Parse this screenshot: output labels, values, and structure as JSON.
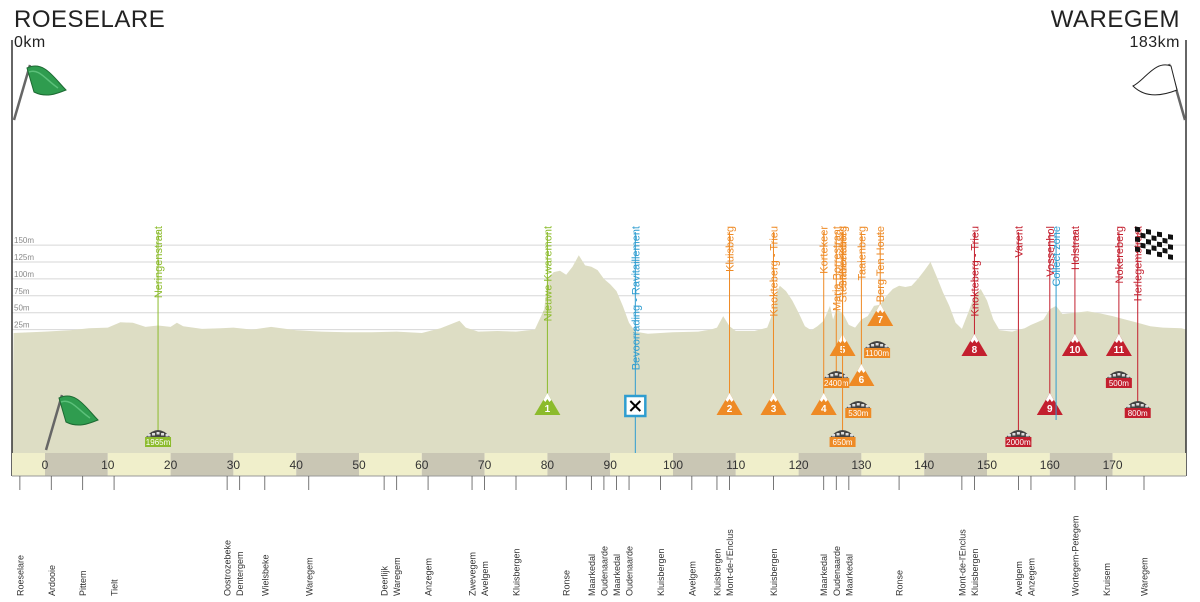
{
  "header": {
    "start_city": "ROESELARE",
    "start_km": "0km",
    "finish_city": "WAREGEM",
    "finish_km": "183km"
  },
  "colors": {
    "terrain": "#ddddc4",
    "green": "#8cbb2c",
    "orange": "#ee8a25",
    "red": "#c31f2e",
    "blue": "#2f9dd0",
    "cobble_line": "#8cbb2c",
    "axis_dark": "#c9c6b4",
    "axis_light": "#f0efcb",
    "grid": "#d7d7d7",
    "flag_green": "#2f9c4f"
  },
  "chart_data": {
    "type": "area",
    "title": "",
    "xlabel": "",
    "ylabel": "",
    "xlim": [
      0,
      183
    ],
    "ylim": [
      0,
      150
    ],
    "x_ticks": [
      0,
      10,
      20,
      30,
      40,
      50,
      60,
      70,
      80,
      90,
      100,
      110,
      120,
      130,
      140,
      150,
      160,
      170
    ],
    "y_ticks": [
      {
        "value": 25,
        "label": "25m"
      },
      {
        "value": 50,
        "label": "50m"
      },
      {
        "value": 75,
        "label": "75m"
      },
      {
        "value": 100,
        "label": "100m"
      },
      {
        "value": 125,
        "label": "125m"
      },
      {
        "value": 150,
        "label": "150m"
      }
    ],
    "elevation": [
      [
        -5,
        20
      ],
      [
        0,
        22
      ],
      [
        4,
        24
      ],
      [
        7,
        27
      ],
      [
        10,
        28
      ],
      [
        12,
        36
      ],
      [
        14,
        35
      ],
      [
        16,
        29
      ],
      [
        18,
        31
      ],
      [
        20,
        29
      ],
      [
        21,
        35
      ],
      [
        22,
        30
      ],
      [
        25,
        26
      ],
      [
        28,
        27
      ],
      [
        30,
        28
      ],
      [
        33,
        25
      ],
      [
        36,
        29
      ],
      [
        40,
        24
      ],
      [
        44,
        22
      ],
      [
        48,
        21
      ],
      [
        52,
        21
      ],
      [
        56,
        22
      ],
      [
        60,
        20
      ],
      [
        63,
        27
      ],
      [
        66,
        38
      ],
      [
        67,
        28
      ],
      [
        69,
        22
      ],
      [
        72,
        23
      ],
      [
        75,
        22
      ],
      [
        78,
        25
      ],
      [
        79.5,
        55
      ],
      [
        80,
        100
      ],
      [
        81,
        110
      ],
      [
        82,
        112
      ],
      [
        83,
        106
      ],
      [
        84,
        118
      ],
      [
        85,
        135
      ],
      [
        86,
        120
      ],
      [
        87,
        118
      ],
      [
        88,
        113
      ],
      [
        89,
        100
      ],
      [
        90,
        92
      ],
      [
        91,
        82
      ],
      [
        92,
        60
      ],
      [
        93,
        35
      ],
      [
        94,
        22
      ],
      [
        96,
        19
      ],
      [
        100,
        21
      ],
      [
        104,
        22
      ],
      [
        106,
        25
      ],
      [
        107,
        28
      ],
      [
        108,
        45
      ],
      [
        109,
        30
      ],
      [
        110,
        23
      ],
      [
        113,
        23
      ],
      [
        115,
        28
      ],
      [
        116,
        52
      ],
      [
        116.5,
        80
      ],
      [
        117,
        90
      ],
      [
        118,
        82
      ],
      [
        119,
        68
      ],
      [
        120,
        50
      ],
      [
        121,
        30
      ],
      [
        122,
        24
      ],
      [
        123,
        30
      ],
      [
        124,
        38
      ],
      [
        125,
        60
      ],
      [
        125.5,
        40
      ],
      [
        126,
        55
      ],
      [
        127,
        50
      ],
      [
        128,
        32
      ],
      [
        129,
        28
      ],
      [
        130,
        40
      ],
      [
        131,
        45
      ],
      [
        132,
        60
      ],
      [
        133,
        62
      ],
      [
        134,
        75
      ],
      [
        135,
        85
      ],
      [
        136,
        90
      ],
      [
        137,
        88
      ],
      [
        138,
        90
      ],
      [
        139,
        100
      ],
      [
        140,
        112
      ],
      [
        141,
        125
      ],
      [
        142,
        103
      ],
      [
        143,
        80
      ],
      [
        144,
        60
      ],
      [
        145,
        35
      ],
      [
        146,
        26
      ],
      [
        147,
        50
      ],
      [
        148,
        75
      ],
      [
        149,
        85
      ],
      [
        150,
        68
      ],
      [
        151,
        40
      ],
      [
        152,
        24
      ],
      [
        154,
        22
      ],
      [
        156,
        27
      ],
      [
        157,
        32
      ],
      [
        158,
        36
      ],
      [
        159,
        40
      ],
      [
        160,
        55
      ],
      [
        161,
        60
      ],
      [
        162,
        48
      ],
      [
        164,
        50
      ],
      [
        166,
        52
      ],
      [
        168,
        49
      ],
      [
        170,
        45
      ],
      [
        172,
        40
      ],
      [
        174,
        35
      ],
      [
        176,
        30
      ],
      [
        178,
        28
      ],
      [
        181,
        27
      ],
      [
        183,
        25
      ],
      [
        188,
        24
      ]
    ],
    "climbs": [
      {
        "num": "1",
        "name": "Nieuwe Kwaremont",
        "km": 80,
        "color": "green",
        "level": "low"
      },
      {
        "num": "2",
        "name": "Kluisberg",
        "km": 109,
        "color": "orange",
        "level": "low"
      },
      {
        "num": "3",
        "name": "Knokteberg - Trieu",
        "km": 116,
        "color": "orange",
        "level": "low"
      },
      {
        "num": "4",
        "name": "Kortekeer",
        "km": 124,
        "color": "orange",
        "level": "low"
      },
      {
        "num": "5",
        "name": "Steenbeekdries",
        "km": 127,
        "color": "orange",
        "level": "high"
      },
      {
        "num": "6",
        "name": "Taaienberg",
        "km": 130,
        "color": "orange",
        "level": "mid"
      },
      {
        "num": "7",
        "name": "Berg Ten Houte",
        "km": 133,
        "color": "orange",
        "level": "top"
      },
      {
        "num": "8",
        "name": "Knokteberg - Trieu",
        "km": 148,
        "color": "red",
        "level": "high"
      },
      {
        "num": "9",
        "name": "Vossenhol",
        "km": 160,
        "color": "red",
        "level": "low"
      },
      {
        "num": "10",
        "name": "Holstraat",
        "km": 164,
        "color": "red",
        "level": "high"
      },
      {
        "num": "11",
        "name": "Nokereberg",
        "km": 171,
        "color": "red",
        "level": "high"
      }
    ],
    "cobbles": [
      {
        "name": "Neringenstraat",
        "label": "1965m",
        "km": 18,
        "color": "green",
        "level": "bottom"
      },
      {
        "name": "Maria Borrestraat",
        "label": "2400m",
        "km": 126,
        "color": "orange",
        "level": "mid"
      },
      {
        "name": "Stationsberg",
        "label": "650m",
        "km": 127,
        "color": "orange",
        "level": "bottom"
      },
      {
        "name": "",
        "label": "530m",
        "km": 129.5,
        "color": "orange",
        "level": "low"
      },
      {
        "name": "",
        "label": "1100m",
        "km": 132.5,
        "color": "orange",
        "level": "high"
      },
      {
        "name": "Varent",
        "label": "2000m",
        "km": 155,
        "color": "red",
        "level": "bottom"
      },
      {
        "name": "Herlegemstraat",
        "label": "800m",
        "km": 174,
        "color": "red",
        "level": "low"
      },
      {
        "name": "",
        "label": "500m",
        "km": 171,
        "color": "red",
        "level": "mid"
      }
    ],
    "other_markers": [
      {
        "name": "Bevoorrading - Ravitaillement",
        "km": 94,
        "color": "blue",
        "type": "feed"
      },
      {
        "name": "Collect zone",
        "km": 161,
        "color": "blue",
        "type": "line"
      }
    ],
    "places": [
      {
        "name": "Roeselare",
        "km": -4
      },
      {
        "name": "Ardooie",
        "km": 1
      },
      {
        "name": "Pittem",
        "km": 6
      },
      {
        "name": "Tielt",
        "km": 11
      },
      {
        "name": "Oostrozebeke",
        "km": 29
      },
      {
        "name": "Dentergem",
        "km": 31
      },
      {
        "name": "Wielsbeke",
        "km": 35
      },
      {
        "name": "Waregem",
        "km": 42
      },
      {
        "name": "Deerlijk",
        "km": 54
      },
      {
        "name": "Waregem",
        "km": 56
      },
      {
        "name": "Anzegem",
        "km": 61
      },
      {
        "name": "Zwevegem",
        "km": 68
      },
      {
        "name": "Avelgem",
        "km": 70
      },
      {
        "name": "Kluisbergen",
        "km": 75
      },
      {
        "name": "Ronse",
        "km": 83
      },
      {
        "name": "Maarkedal",
        "km": 87
      },
      {
        "name": "Oudenaarde",
        "km": 89
      },
      {
        "name": "Maarkedal",
        "km": 91
      },
      {
        "name": "Oudenaarde",
        "km": 93
      },
      {
        "name": "Kluisbergen",
        "km": 98
      },
      {
        "name": "Avelgem",
        "km": 103
      },
      {
        "name": "Kluisbergen",
        "km": 107
      },
      {
        "name": "Mont-de-l'Enclus",
        "km": 109
      },
      {
        "name": "Kluisbergen",
        "km": 116
      },
      {
        "name": "Maarkedal",
        "km": 124
      },
      {
        "name": "Oudenaarde",
        "km": 126
      },
      {
        "name": "Maarkedal",
        "km": 128
      },
      {
        "name": "Ronse",
        "km": 136
      },
      {
        "name": "Mont-de-l'Enclus",
        "km": 146
      },
      {
        "name": "Kluisbergen",
        "km": 148
      },
      {
        "name": "Avelgem",
        "km": 155
      },
      {
        "name": "Anzegem",
        "km": 157
      },
      {
        "name": "Wortegem-Petegem",
        "km": 164
      },
      {
        "name": "Kruisem",
        "km": 169
      },
      {
        "name": "Waregem",
        "km": 175
      }
    ]
  }
}
